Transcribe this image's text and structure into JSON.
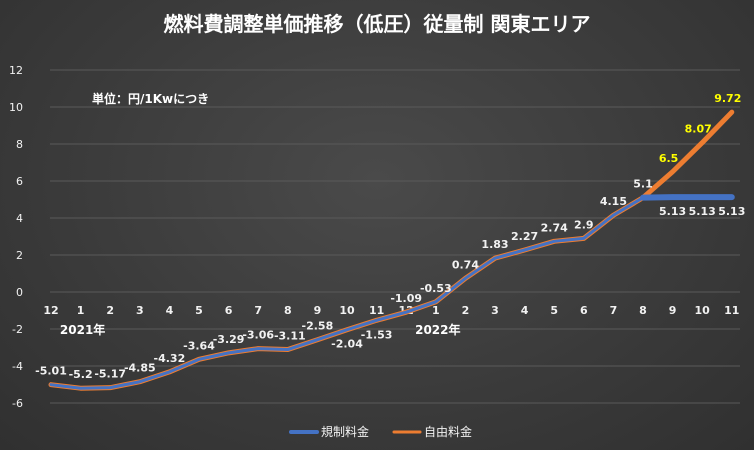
{
  "chart_data": {
    "type": "line",
    "title": "燃料費調整単価推移（低圧）従量制 関東エリア",
    "unit_note": "単位：円/1Kwにつき",
    "categories": [
      "12",
      "1",
      "2",
      "3",
      "4",
      "5",
      "6",
      "7",
      "8",
      "9",
      "10",
      "11",
      "12",
      "1",
      "2",
      "3",
      "4",
      "5",
      "6",
      "7",
      "8",
      "9",
      "10",
      "11"
    ],
    "year_labels": [
      {
        "index": 1,
        "label": "2021年"
      },
      {
        "index": 13,
        "label": "2022年"
      }
    ],
    "ylim": [
      -6,
      12
    ],
    "yticks": [
      -6,
      -4,
      -2,
      0,
      2,
      4,
      6,
      8,
      10,
      12
    ],
    "grid": true,
    "legend_position": "bottom",
    "series": [
      {
        "name": "規制料金",
        "color": "#4472c4",
        "values": [
          -5.01,
          -5.2,
          -5.17,
          -4.85,
          -4.32,
          -3.64,
          -3.29,
          -3.06,
          -3.11,
          -2.58,
          -2.04,
          -1.53,
          -1.09,
          -0.53,
          0.74,
          1.83,
          2.27,
          2.74,
          2.9,
          4.15,
          5.1,
          5.13,
          5.13,
          5.13
        ],
        "labels": [
          "-5.01",
          "-5.2",
          "-5.17",
          "-4.85",
          "-4.32",
          "-3.64",
          "-3.29",
          "-3.06",
          "-3.11",
          "-2.58",
          "-2.04",
          "-1.53",
          "-1.09",
          "-0.53",
          "0.74",
          "1.83",
          "2.27",
          "2.74",
          "2.9",
          "4.15",
          "5.1",
          "5.13",
          "5.13",
          "5.13"
        ]
      },
      {
        "name": "自由料金",
        "color": "#ed7d31",
        "values": [
          -5.01,
          -5.2,
          -5.17,
          -4.85,
          -4.32,
          -3.64,
          -3.29,
          -3.06,
          -3.11,
          -2.58,
          -2.04,
          -1.53,
          -1.09,
          -0.53,
          0.74,
          1.83,
          2.27,
          2.74,
          2.9,
          4.15,
          5.1,
          6.5,
          8.07,
          9.72
        ],
        "labels": [
          "",
          "",
          "",
          "",
          "",
          "",
          "",
          "",
          "",
          "",
          "",
          "",
          "",
          "",
          "",
          "",
          "",
          "",
          "",
          "",
          "",
          "6.5",
          "8.07",
          "9.72"
        ]
      }
    ]
  }
}
